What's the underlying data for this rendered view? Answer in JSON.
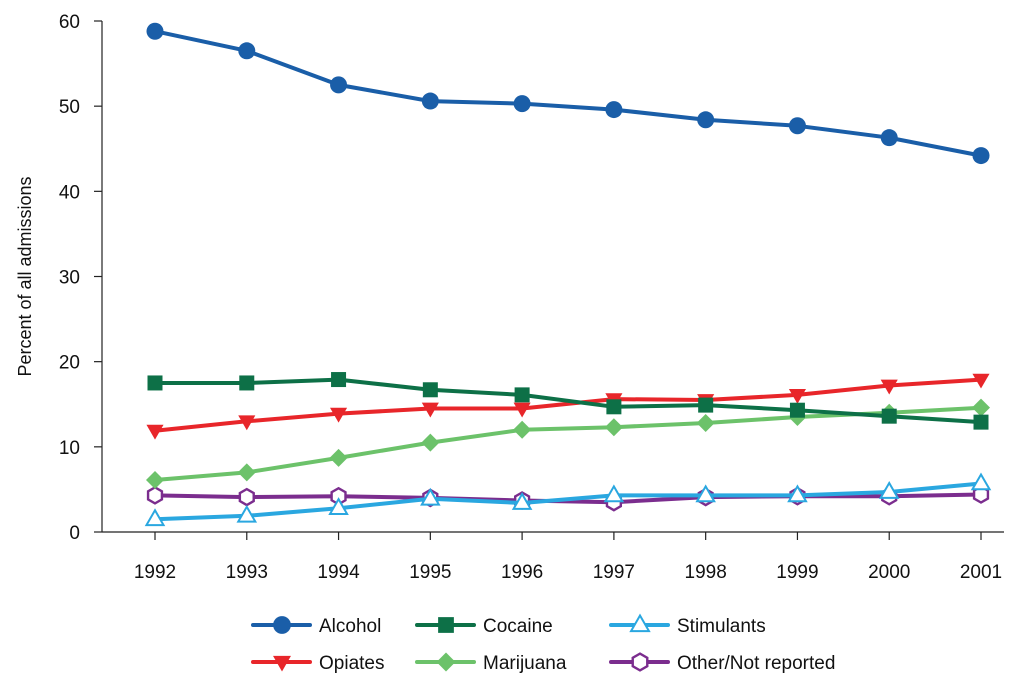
{
  "chart_data": {
    "type": "line",
    "title": "",
    "xlabel": "",
    "ylabel": "Percent of all admissions",
    "ylim": [
      0,
      60
    ],
    "yticks": [
      0,
      10,
      20,
      30,
      40,
      50,
      60
    ],
    "categories": [
      "1992",
      "1993",
      "1994",
      "1995",
      "1996",
      "1997",
      "1998",
      "1999",
      "2000",
      "2001"
    ],
    "grid": false,
    "legend_position": "bottom",
    "series": [
      {
        "name": "Alcohol",
        "color": "#1a5ea8",
        "marker": "circle",
        "values": [
          58.8,
          56.5,
          52.5,
          50.6,
          50.3,
          49.6,
          48.4,
          47.7,
          46.3,
          44.2
        ]
      },
      {
        "name": "Cocaine",
        "color": "#0d7047",
        "marker": "square",
        "values": [
          17.5,
          17.5,
          17.9,
          16.7,
          16.1,
          14.7,
          14.9,
          14.3,
          13.6,
          12.9
        ]
      },
      {
        "name": "Stimulants",
        "color": "#2aa7e0",
        "marker": "triangle-up-open",
        "values": [
          1.5,
          1.9,
          2.8,
          3.9,
          3.4,
          4.3,
          4.3,
          4.3,
          4.7,
          5.7
        ]
      },
      {
        "name": "Opiates",
        "color": "#e8262a",
        "marker": "triangle-down",
        "values": [
          11.9,
          13.0,
          13.9,
          14.5,
          14.5,
          15.6,
          15.5,
          16.1,
          17.2,
          17.9
        ]
      },
      {
        "name": "Marijuana",
        "color": "#6cc26a",
        "marker": "diamond",
        "values": [
          6.1,
          7.0,
          8.7,
          10.5,
          12.0,
          12.3,
          12.8,
          13.5,
          14.0,
          14.6
        ]
      },
      {
        "name": "Other/Not reported",
        "color": "#7b2d8e",
        "marker": "hexagon-open",
        "values": [
          4.3,
          4.1,
          4.2,
          4.0,
          3.7,
          3.5,
          4.1,
          4.2,
          4.2,
          4.4
        ]
      }
    ]
  }
}
